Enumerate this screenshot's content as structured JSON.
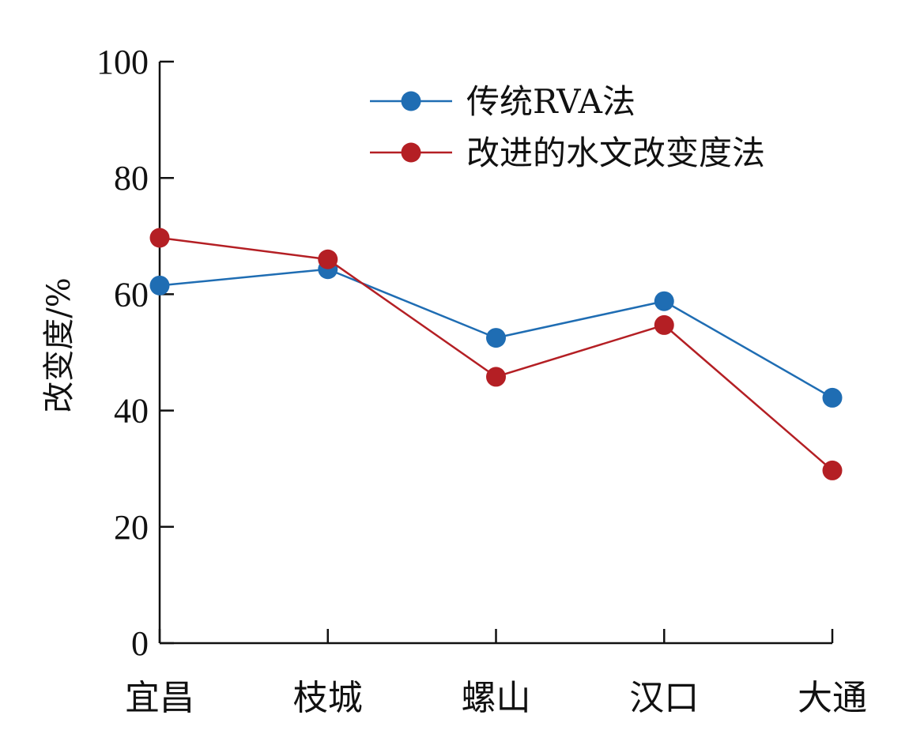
{
  "chart_data": {
    "type": "line",
    "categories": [
      "宜昌",
      "枝城",
      "螺山",
      "汉口",
      "大通"
    ],
    "ylabel": "改变度/%",
    "xlabel": "",
    "ylim": [
      0,
      100
    ],
    "yticks": [
      "0",
      "20",
      "40",
      "60",
      "80",
      "100"
    ],
    "legend_position": "top-right",
    "grid": false,
    "series": [
      {
        "name": "传统RVA法",
        "color": "#1f6db3",
        "values": [
          61.5,
          64.3,
          52.5,
          58.8,
          42.2
        ]
      },
      {
        "name": "改进的水文改变度法",
        "color": "#b41f24",
        "values": [
          69.7,
          66.0,
          45.8,
          54.7,
          29.7
        ]
      }
    ]
  }
}
